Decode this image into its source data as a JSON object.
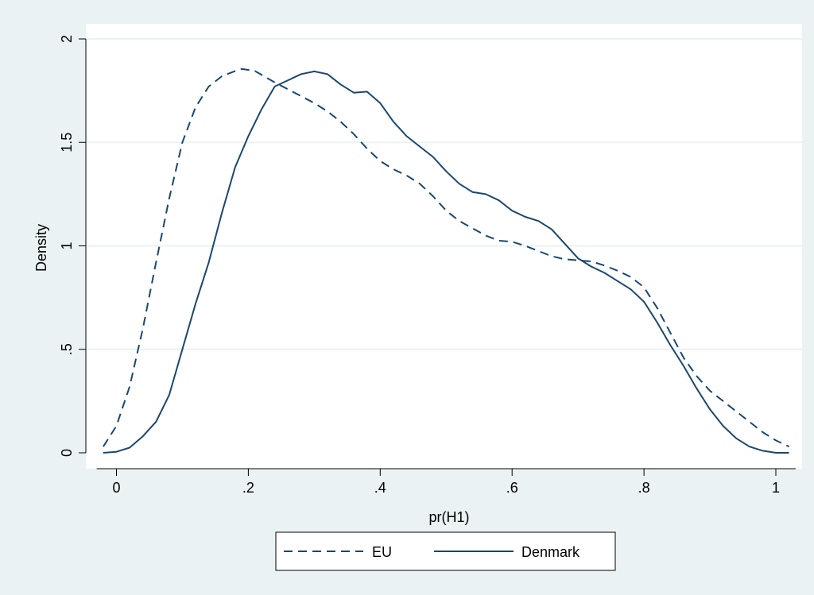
{
  "chart_data": {
    "type": "line",
    "title": "",
    "xlabel": "pr(H1)",
    "ylabel": "Density",
    "xlim": [
      -0.03,
      1.03
    ],
    "ylim": [
      0,
      2
    ],
    "xticks": [
      0,
      0.2,
      0.4,
      0.6,
      0.8,
      1
    ],
    "xtick_labels": [
      "0",
      ".2",
      ".4",
      ".6",
      ".8",
      "1"
    ],
    "yticks": [
      0,
      0.5,
      1,
      1.5,
      2
    ],
    "ytick_labels": [
      "0",
      ".5",
      "1",
      "1.5",
      "2"
    ],
    "grid": "horizontal",
    "legend_position": "bottom",
    "colors": {
      "background": "#eaf2f3",
      "plot_area": "#ffffff",
      "line": "#1a476f",
      "grid": "#eaf2f3"
    },
    "series": [
      {
        "name": "EU",
        "style": "dashed",
        "x": [
          -0.02,
          0.0,
          0.02,
          0.04,
          0.06,
          0.08,
          0.1,
          0.12,
          0.14,
          0.16,
          0.18,
          0.19,
          0.21,
          0.24,
          0.27,
          0.3,
          0.32,
          0.34,
          0.36,
          0.38,
          0.4,
          0.42,
          0.44,
          0.46,
          0.48,
          0.5,
          0.52,
          0.54,
          0.56,
          0.58,
          0.6,
          0.62,
          0.64,
          0.66,
          0.68,
          0.7,
          0.72,
          0.74,
          0.76,
          0.78,
          0.8,
          0.82,
          0.84,
          0.86,
          0.88,
          0.9,
          0.92,
          0.94,
          0.96,
          0.98,
          1.0,
          1.02
        ],
        "y": [
          0.03,
          0.13,
          0.32,
          0.6,
          0.92,
          1.23,
          1.5,
          1.67,
          1.77,
          1.82,
          1.845,
          1.855,
          1.845,
          1.79,
          1.74,
          1.69,
          1.65,
          1.6,
          1.54,
          1.47,
          1.41,
          1.37,
          1.34,
          1.3,
          1.24,
          1.17,
          1.12,
          1.085,
          1.05,
          1.025,
          1.02,
          1.0,
          0.975,
          0.95,
          0.935,
          0.93,
          0.925,
          0.905,
          0.88,
          0.85,
          0.8,
          0.7,
          0.58,
          0.46,
          0.37,
          0.3,
          0.25,
          0.2,
          0.15,
          0.1,
          0.06,
          0.03
        ]
      },
      {
        "name": "Denmark",
        "style": "solid",
        "x": [
          -0.02,
          0.0,
          0.02,
          0.04,
          0.06,
          0.08,
          0.1,
          0.12,
          0.14,
          0.16,
          0.18,
          0.2,
          0.22,
          0.24,
          0.26,
          0.28,
          0.3,
          0.32,
          0.34,
          0.36,
          0.38,
          0.4,
          0.42,
          0.44,
          0.46,
          0.48,
          0.5,
          0.52,
          0.54,
          0.56,
          0.58,
          0.6,
          0.62,
          0.64,
          0.66,
          0.68,
          0.7,
          0.72,
          0.74,
          0.76,
          0.78,
          0.8,
          0.82,
          0.84,
          0.86,
          0.88,
          0.9,
          0.92,
          0.94,
          0.96,
          0.98,
          1.0,
          1.02
        ],
        "y": [
          0.0,
          0.005,
          0.025,
          0.08,
          0.15,
          0.28,
          0.5,
          0.72,
          0.92,
          1.16,
          1.38,
          1.53,
          1.66,
          1.77,
          1.8,
          1.83,
          1.843,
          1.83,
          1.78,
          1.74,
          1.745,
          1.69,
          1.6,
          1.53,
          1.48,
          1.43,
          1.36,
          1.3,
          1.26,
          1.25,
          1.22,
          1.17,
          1.14,
          1.12,
          1.08,
          1.01,
          0.94,
          0.9,
          0.87,
          0.83,
          0.79,
          0.73,
          0.63,
          0.52,
          0.42,
          0.31,
          0.21,
          0.13,
          0.07,
          0.03,
          0.01,
          0.0,
          0.0
        ]
      }
    ]
  }
}
